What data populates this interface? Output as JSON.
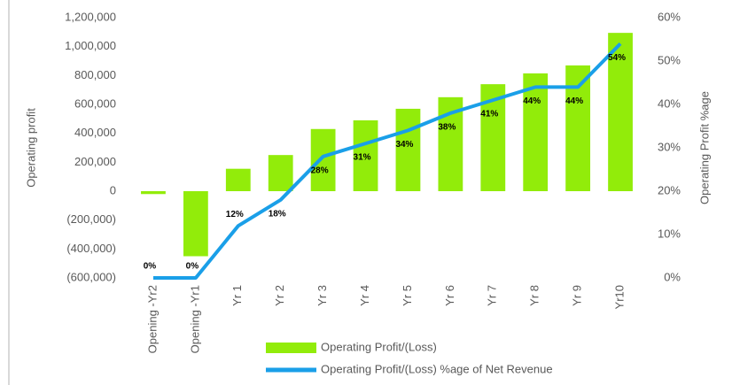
{
  "chart_data": {
    "type": "bar_line",
    "categories": [
      "Opening -Yr2",
      "Opening -Yr1",
      "Yr 1",
      "Yr 2",
      "Yr 3",
      "Yr 4",
      "Yr 5",
      "Yr 6",
      "Yr 7",
      "Yr 8",
      "Yr 9",
      "Yr10"
    ],
    "series": [
      {
        "name": "Operating Profit/(Loss)",
        "type": "bar",
        "color": "#92ec0a",
        "values": [
          -20000,
          -450000,
          155000,
          250000,
          430000,
          490000,
          570000,
          650000,
          740000,
          815000,
          870000,
          1095000
        ]
      },
      {
        "name": "Operating Profit/(Loss) %age of Net Revenue",
        "type": "line",
        "axis": "y2",
        "color": "#1a9fe8",
        "values": [
          0,
          0,
          12,
          18,
          28,
          31,
          34,
          38,
          41,
          44,
          44,
          54
        ],
        "value_labels": [
          "0%",
          "0%",
          "12%",
          "18%",
          "28%",
          "31%",
          "34%",
          "38%",
          "41%",
          "44%",
          "44%",
          "54%"
        ]
      }
    ],
    "ylabel": "Operating profit",
    "y2label": "Operating Profit %age",
    "ylim": [
      -600000,
      1200000
    ],
    "yticks": [
      {
        "value": -600000,
        "label": "(600,000)"
      },
      {
        "value": -400000,
        "label": "(400,000)"
      },
      {
        "value": -200000,
        "label": "(200,000)"
      },
      0,
      {
        "value": 200000,
        "label": "200,000"
      },
      {
        "value": 400000,
        "label": "400,000"
      },
      {
        "value": 600000,
        "label": "600,000"
      },
      {
        "value": 800000,
        "label": "800,000"
      },
      {
        "value": 1000000,
        "label": "1,000,000"
      },
      {
        "value": 1200000,
        "label": "1,200,000"
      }
    ],
    "y2lim": [
      0,
      60
    ],
    "y2ticks": [
      {
        "value": 0,
        "label": "0%"
      },
      {
        "value": 10,
        "label": "10%"
      },
      {
        "value": 20,
        "label": "20%"
      },
      {
        "value": 30,
        "label": "30%"
      },
      {
        "value": 40,
        "label": "40%"
      },
      {
        "value": 50,
        "label": "50%"
      },
      {
        "value": 60,
        "label": "60%"
      }
    ],
    "legend": "bottom"
  }
}
